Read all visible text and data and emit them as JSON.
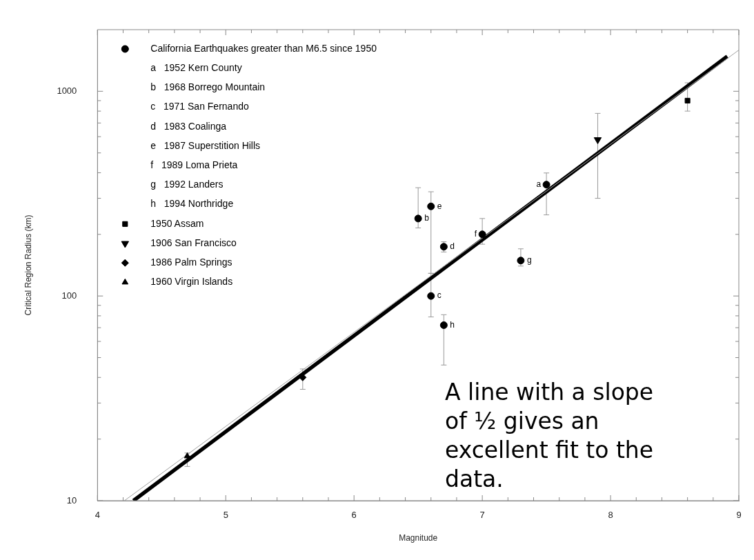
{
  "chart_data": {
    "type": "scatter",
    "xlabel": "Magnitude",
    "ylabel": "Critical Region Radius (km)",
    "log": "y",
    "legend": "top left",
    "xlim": [
      4,
      9
    ],
    "xticks": [
      4,
      {
        "value": 4.2,
        "label": null
      },
      {
        "value": 4.4,
        "label": null
      },
      {
        "value": 4.6,
        "label": null
      },
      {
        "value": 4.8,
        "label": null
      },
      5,
      {
        "value": 5.2,
        "label": null
      },
      {
        "value": 5.4,
        "label": null
      },
      {
        "value": 5.6,
        "label": null
      },
      {
        "value": 5.8,
        "label": null
      },
      6,
      {
        "value": 6.2,
        "label": null
      },
      {
        "value": 6.4,
        "label": null
      },
      {
        "value": 6.6,
        "label": null
      },
      {
        "value": 6.8,
        "label": null
      },
      7,
      {
        "value": 7.2,
        "label": null
      },
      {
        "value": 7.4,
        "label": null
      },
      {
        "value": 7.6,
        "label": null
      },
      {
        "value": 7.8,
        "label": null
      },
      8,
      {
        "value": 8.2,
        "label": null
      },
      {
        "value": 8.4,
        "label": null
      },
      {
        "value": 8.6,
        "label": null
      },
      {
        "value": 8.8,
        "label": null
      },
      9
    ],
    "ylim": [
      10,
      2000
    ],
    "yticks": [
      10,
      {
        "value": 20,
        "label": null
      },
      {
        "value": 30,
        "label": null
      },
      {
        "value": 40,
        "label": null
      },
      {
        "value": 50,
        "label": null
      },
      {
        "value": 60,
        "label": null
      },
      {
        "value": 70,
        "label": null
      },
      {
        "value": 80,
        "label": null
      },
      {
        "value": 90,
        "label": null
      },
      100,
      {
        "value": 200,
        "label": null
      },
      {
        "value": 300,
        "label": null
      },
      {
        "value": 400,
        "label": null
      },
      {
        "value": 500,
        "label": null
      },
      {
        "value": 600,
        "label": null
      },
      {
        "value": 700,
        "label": null
      },
      {
        "value": 800,
        "label": null
      },
      {
        "value": 900,
        "label": null
      },
      1000
    ],
    "series": [
      {
        "name": "California Earthquakes greater than M6.5 since 1950",
        "marker": "circle",
        "color": "#000000",
        "x": [
          7.5,
          6.5,
          6.6,
          6.7,
          6.6,
          7.0,
          7.3,
          6.7
        ],
        "values": [
          350,
          239,
          100,
          174,
          274,
          200,
          149,
          72
        ],
        "errors": [
          [
            249,
            399
          ],
          [
            215,
            338
          ],
          [
            79,
            129
          ],
          [
            164,
            184
          ],
          [
            129,
            323
          ],
          [
            179,
            239
          ],
          [
            140,
            170
          ],
          [
            46,
            81
          ]
        ]
      },
      {
        "name": "1950 Assam",
        "marker": "square",
        "color": "#000000",
        "x": [
          8.6
        ],
        "values": [
          900
        ],
        "errors": [
          [
            800,
            1100
          ]
        ]
      },
      {
        "name": "1906 San Francisco",
        "marker": "triangle-down",
        "color": "#000000",
        "x": [
          7.9
        ],
        "values": [
          580
        ],
        "errors": [
          [
            300,
            780
          ]
        ]
      },
      {
        "name": "1986 Palm Springs",
        "marker": "diamond",
        "color": "#000000",
        "x": [
          5.6
        ],
        "values": [
          40
        ],
        "errors": [
          [
            35,
            44
          ]
        ]
      },
      {
        "name": "1960 Virgin Islands",
        "marker": "triangle",
        "color": "#000000",
        "x": [
          4.7
        ],
        "values": [
          16.5
        ],
        "errors": [
          [
            14.7,
            17.1
          ]
        ]
      },
      {
        "type": "line",
        "marker": "none",
        "color": "#000000",
        "x": [
          4.28,
          8.91
        ],
        "values": [
          10,
          1480
        ]
      },
      {
        "type": "line",
        "marker": "none",
        "color": "#a0a0a0",
        "x": [
          4.21,
          9.0
        ],
        "values": [
          10,
          1590
        ]
      }
    ],
    "annotations": [
      {
        "text": "a",
        "x": 7.5,
        "y": 350
      },
      {
        "text": "b",
        "x": 6.5,
        "y": 239
      },
      {
        "text": "c",
        "x": 6.6,
        "y": 100
      },
      {
        "text": "d",
        "x": 6.7,
        "y": 174
      },
      {
        "text": "e",
        "x": 6.6,
        "y": 274
      },
      {
        "text": "f",
        "x": 7.0,
        "y": 200
      },
      {
        "text": "g",
        "x": 7.3,
        "y": 149
      },
      {
        "text": "h",
        "x": 6.7,
        "y": 72
      },
      "a   1952 Kern County",
      "b   1968 Borrego Mountain",
      "c   1971 San Fernando",
      "d   1983 Coalinga",
      "e   1987 Superstition Hills",
      "f   1989 Loma Prieta",
      "g   1992 Landers",
      "h   1994 Northridge",
      "A line with a slope of ½ gives an excellent fit to the data."
    ]
  }
}
